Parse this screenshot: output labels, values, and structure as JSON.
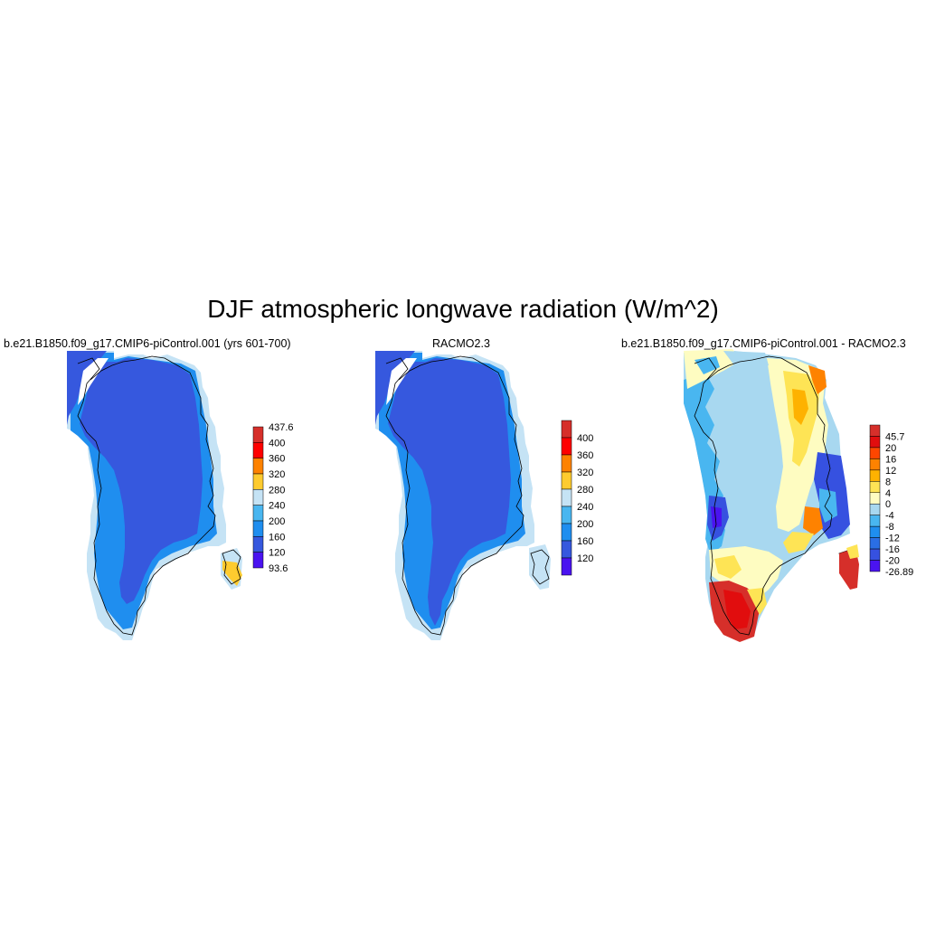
{
  "title": "DJF atmospheric longwave radiation (W/m^2)",
  "panels": [
    {
      "title": "b.e21.B1850.f09_g17.CMIP6-piControl.001 (yrs 601-700)",
      "colorbar": {
        "labels": [
          "437.6",
          "400",
          "360",
          "320",
          "280",
          "240",
          "200",
          "160",
          "120",
          "93.6"
        ],
        "colors": [
          "#d62f2a",
          "#fe0000",
          "#fe8200",
          "#fecb2f",
          "#c5e3f5",
          "#49b6f0",
          "#1f8eef",
          "#3658de",
          "#4a13f0"
        ]
      }
    },
    {
      "title": "RACMO2.3",
      "colorbar": {
        "labels": [
          "400",
          "360",
          "320",
          "280",
          "240",
          "200",
          "160",
          "120"
        ],
        "colors": [
          "#d62f2a",
          "#fe0000",
          "#fe8200",
          "#fecb2f",
          "#c5e3f5",
          "#49b6f0",
          "#1f8eef",
          "#3658de",
          "#4a13f0"
        ]
      }
    },
    {
      "title": "b.e21.B1850.f09_g17.CMIP6-piControl.001 - RACMO2.3",
      "colorbar": {
        "labels": [
          "45.7",
          "20",
          "16",
          "12",
          "8",
          "4",
          "0",
          "-4",
          "-8",
          "-12",
          "-16",
          "-20",
          "-26.89"
        ],
        "colors": [
          "#d62f2a",
          "#e10d0e",
          "#fe4600",
          "#fe8200",
          "#feb200",
          "#fee455",
          "#fefcc1",
          "#a8d8f0",
          "#49b6f0",
          "#1f8eef",
          "#2a6ee4",
          "#3651e0",
          "#4a13f0"
        ]
      }
    }
  ]
}
